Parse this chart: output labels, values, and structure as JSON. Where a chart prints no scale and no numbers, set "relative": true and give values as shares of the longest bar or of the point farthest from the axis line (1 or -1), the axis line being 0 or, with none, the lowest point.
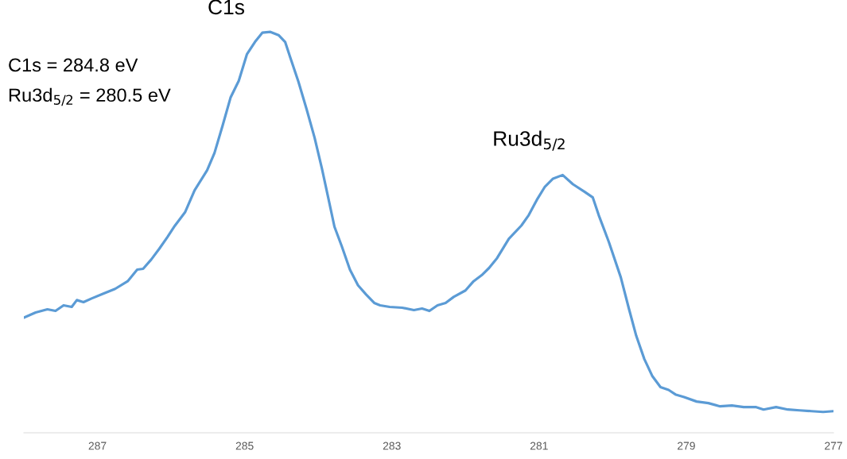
{
  "chart_data": {
    "type": "line",
    "relative": true,
    "xlim": [
      288,
      277
    ],
    "xticks": [
      287,
      285,
      283,
      281,
      279,
      277
    ],
    "grid": false,
    "legend": false,
    "marker": "none",
    "line_style": "solid",
    "tick_labels": "x",
    "annotations": [
      {
        "text": "C1s",
        "x": 284.65,
        "y": 1
      },
      {
        "text": "Ru3d$_{5/2}$",
        "x": 280.68,
        "y": 0.643
      },
      "C1s = 284.8 eV",
      "Ru3d$_{5/2}$ = 280.5 eV"
    ],
    "series": [
      {
        "color": "#5b9bd5",
        "x": [
          288.0,
          287.84,
          287.68,
          287.57,
          287.46,
          287.35,
          287.28,
          287.19,
          287.08,
          286.92,
          286.76,
          286.59,
          286.46,
          286.38,
          286.27,
          286.16,
          286.05,
          285.95,
          285.81,
          285.68,
          285.51,
          285.41,
          285.3,
          285.19,
          285.08,
          284.97,
          284.86,
          284.76,
          284.65,
          284.54,
          284.45,
          284.38,
          284.27,
          284.16,
          284.05,
          283.95,
          283.87,
          283.78,
          283.68,
          283.57,
          283.46,
          283.35,
          283.24,
          283.16,
          283.03,
          282.86,
          282.7,
          282.59,
          282.49,
          282.38,
          282.27,
          282.16,
          282.0,
          281.89,
          281.78,
          281.68,
          281.57,
          281.41,
          281.24,
          281.14,
          281.03,
          280.92,
          280.81,
          280.68,
          280.54,
          280.38,
          280.27,
          280.19,
          280.05,
          279.89,
          279.78,
          279.68,
          279.57,
          279.46,
          279.35,
          279.24,
          279.14,
          279.03,
          278.86,
          278.7,
          278.54,
          278.38,
          278.22,
          278.05,
          277.95,
          277.78,
          277.62,
          277.46,
          277.3,
          277.14,
          277.0
        ],
        "values": [
          0.287,
          0.3,
          0.308,
          0.304,
          0.318,
          0.314,
          0.331,
          0.326,
          0.335,
          0.347,
          0.359,
          0.378,
          0.407,
          0.409,
          0.432,
          0.459,
          0.488,
          0.516,
          0.55,
          0.605,
          0.655,
          0.698,
          0.766,
          0.837,
          0.878,
          0.944,
          0.975,
          0.998,
          1,
          0.992,
          0.975,
          0.936,
          0.876,
          0.808,
          0.736,
          0.659,
          0.591,
          0.514,
          0.465,
          0.407,
          0.368,
          0.345,
          0.324,
          0.318,
          0.314,
          0.312,
          0.306,
          0.31,
          0.304,
          0.318,
          0.324,
          0.339,
          0.355,
          0.378,
          0.393,
          0.411,
          0.436,
          0.484,
          0.517,
          0.543,
          0.581,
          0.614,
          0.634,
          0.643,
          0.62,
          0.601,
          0.587,
          0.543,
          0.475,
          0.388,
          0.31,
          0.242,
          0.184,
          0.141,
          0.114,
          0.107,
          0.095,
          0.089,
          0.078,
          0.074,
          0.066,
          0.068,
          0.064,
          0.064,
          0.058,
          0.064,
          0.058,
          0.056,
          0.054,
          0.052,
          0.054
        ]
      }
    ]
  }
}
